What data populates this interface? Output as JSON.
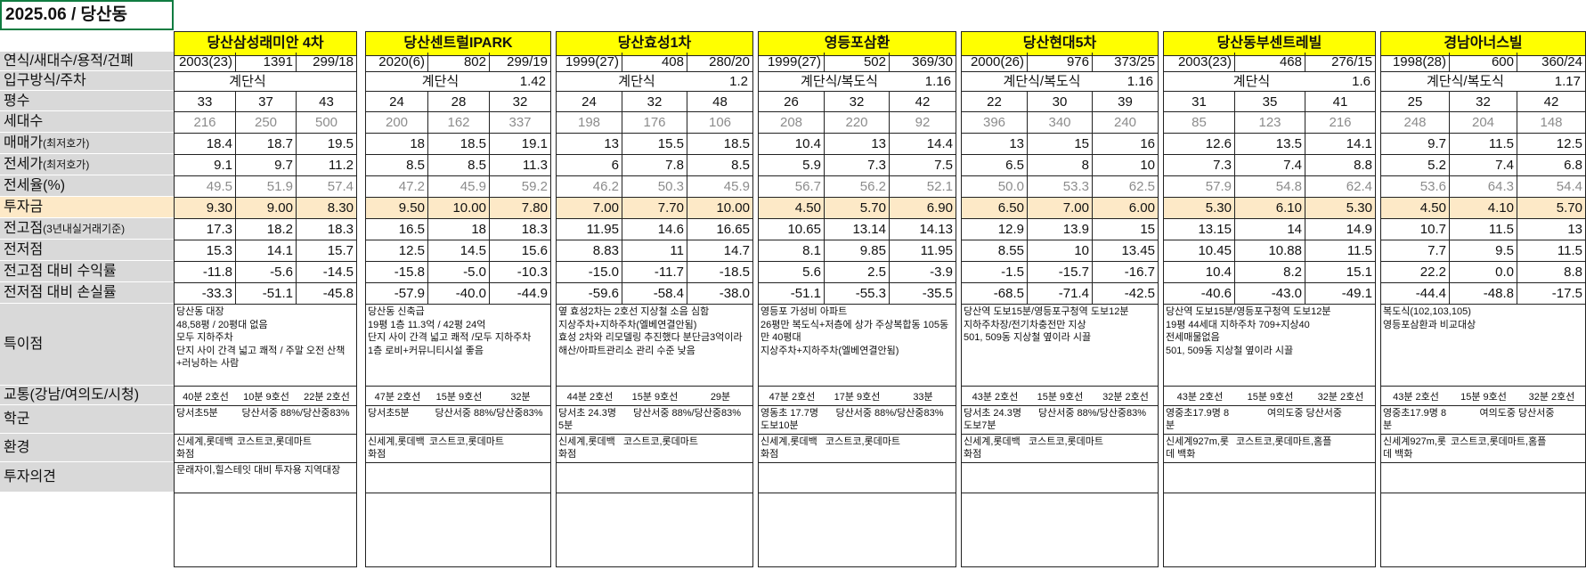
{
  "title": "2025.06 / 당산동",
  "labels": {
    "specs": "연식/새대수/용적/건폐",
    "entry": "입구방식/주차",
    "pyeong": "평수",
    "units": "세대수",
    "sale_main": "매매가",
    "sale_sub": "(최저호가)",
    "jeonse_main": "전세가",
    "jeonse_sub": "(최저호가)",
    "ratio": "전세율(%)",
    "invest": "투자금",
    "high_main": "전고점",
    "high_sub": "(3년내실거래기준)",
    "low": "전저점",
    "high_ret": "전고점 대비 수익률",
    "low_loss": "전저점 대비 손실률",
    "notes": "특이점",
    "transit": "교통(강남/여의도/시청)",
    "school": "학군",
    "env": "환경",
    "opinion": "투자의견"
  },
  "complexes": [
    {
      "name": "당산삼성래미안 4차",
      "specs": [
        "2003(23)",
        "1391",
        "299/18"
      ],
      "entry": "계단식",
      "parking": "",
      "pyeong": [
        "33",
        "37",
        "43"
      ],
      "units": [
        "216",
        "250",
        "500"
      ],
      "sale": [
        "18.4",
        "18.7",
        "19.5"
      ],
      "jeonse": [
        "9.1",
        "9.7",
        "11.2"
      ],
      "ratio": [
        "49.5",
        "51.9",
        "57.4"
      ],
      "invest": [
        "9.30",
        "9.00",
        "8.30"
      ],
      "high": [
        "17.3",
        "18.2",
        "18.3"
      ],
      "low": [
        "15.3",
        "14.1",
        "15.7"
      ],
      "high_ret": [
        "-11.8",
        "-5.6",
        "-14.5"
      ],
      "low_loss": [
        "-33.3",
        "-51.1",
        "-45.8"
      ],
      "notes": "당산동 대장\n48,58평 / 20평대 없음\n모두 지하주차\n단지 사이 간격 넓고 쾌적 / 주말 오전 산책+러닝하는 사람",
      "transit": [
        "40분 2호선",
        "10분 9호선",
        "22분 2호선"
      ],
      "school": [
        "당서초5분",
        "당산서중 88%/당산중83%"
      ],
      "env": [
        "신세계,롯데백화점",
        "코스트코,롯데마트"
      ],
      "opinion": "문래자이,힐스테잇 대비 투자용 지역대장"
    },
    {
      "name": "당산센트럴IPARK",
      "specs": [
        "2020(6)",
        "802",
        "299/19"
      ],
      "entry": "계단식",
      "parking": "1.42",
      "pyeong": [
        "24",
        "28",
        "32"
      ],
      "units": [
        "200",
        "162",
        "337"
      ],
      "sale": [
        "18",
        "18.5",
        "19.1"
      ],
      "jeonse": [
        "8.5",
        "8.5",
        "11.3"
      ],
      "ratio": [
        "47.2",
        "45.9",
        "59.2"
      ],
      "invest": [
        "9.50",
        "10.00",
        "7.80"
      ],
      "high": [
        "16.5",
        "18",
        "18.3"
      ],
      "low": [
        "12.5",
        "14.5",
        "15.6"
      ],
      "high_ret": [
        "-15.8",
        "-5.0",
        "-10.3"
      ],
      "low_loss": [
        "-57.9",
        "-40.0",
        "-44.9"
      ],
      "notes": "당산동 신축급\n19평 1층 11.3억 / 42평 24억\n단지 사이 간격 넓고 쾌적 /모두 지하주차\n1층 로비+커뮤니티시설 좋음",
      "transit": [
        "47분 2호선",
        "15분 9호선",
        "32분"
      ],
      "school": [
        "당서초5분",
        "당산서중 88%/당산중83%"
      ],
      "env": [
        "신세계,롯데백화점",
        "코스트코,롯데마트"
      ],
      "opinion": ""
    },
    {
      "name": "당산효성1차",
      "specs": [
        "1999(27)",
        "408",
        "280/20"
      ],
      "entry": "계단식",
      "parking": "1.2",
      "pyeong": [
        "24",
        "32",
        "48"
      ],
      "units": [
        "198",
        "176",
        "106"
      ],
      "sale": [
        "13",
        "15.5",
        "18.5"
      ],
      "jeonse": [
        "6",
        "7.8",
        "8.5"
      ],
      "ratio": [
        "46.2",
        "50.3",
        "45.9"
      ],
      "invest": [
        "7.00",
        "7.70",
        "10.00"
      ],
      "high": [
        "11.95",
        "14.6",
        "16.65"
      ],
      "low": [
        "8.83",
        "11",
        "14.7"
      ],
      "high_ret": [
        "-15.0",
        "-11.7",
        "-18.5"
      ],
      "low_loss": [
        "-59.6",
        "-58.4",
        "-38.0"
      ],
      "notes": "옆 효성2차는 2호선 지상철 소음 심함\n지상주차+지하주차(엘베연결안됨)\n효성 2차와 리모델링 추진했다 분단금3억이라 해산/아파트관리소 관리 수준 낮음",
      "transit": [
        "44분 2호선",
        "15분 9호선",
        "29분"
      ],
      "school": [
        "당서초 24.3명 5분",
        "당산서중 88%/당산중83%"
      ],
      "env": [
        "신세계,롯데백화점",
        "코스트코,롯데마트"
      ],
      "opinion": ""
    },
    {
      "name": "영등포삼환",
      "specs": [
        "1999(27)",
        "502",
        "369/30"
      ],
      "entry": "계단식/복도식",
      "parking": "1.16",
      "pyeong": [
        "26",
        "32",
        "42"
      ],
      "units": [
        "208",
        "220",
        "92"
      ],
      "sale": [
        "10.4",
        "13",
        "14.4"
      ],
      "jeonse": [
        "5.9",
        "7.3",
        "7.5"
      ],
      "ratio": [
        "56.7",
        "56.2",
        "52.1"
      ],
      "invest": [
        "4.50",
        "5.70",
        "6.90"
      ],
      "high": [
        "10.65",
        "13.14",
        "14.13"
      ],
      "low": [
        "8.1",
        "9.85",
        "11.95"
      ],
      "high_ret": [
        "5.6",
        "2.5",
        "-3.9"
      ],
      "low_loss": [
        "-51.1",
        "-55.3",
        "-35.5"
      ],
      "notes": "영등포 가성비 아파트\n26평만 복도식+저층에 상가 주상복합동 105동만 40평대\n지상주차+지하주차(엘베연결안됨)",
      "transit": [
        "47분 2호선",
        "17분 9호선",
        "33분"
      ],
      "school": [
        "영동초 17.7명 도보10분",
        "당산서중 88%/당산중83%"
      ],
      "env": [
        "신세계,롯데백화점",
        "코스트코,롯데마트"
      ],
      "opinion": ""
    },
    {
      "name": "당산현대5차",
      "specs": [
        "2000(26)",
        "976",
        "373/25"
      ],
      "entry": "계단식/복도식",
      "parking": "1.16",
      "pyeong": [
        "22",
        "30",
        "39"
      ],
      "units": [
        "396",
        "340",
        "240"
      ],
      "sale": [
        "13",
        "15",
        "16"
      ],
      "jeonse": [
        "6.5",
        "8",
        "10"
      ],
      "ratio": [
        "50.0",
        "53.3",
        "62.5"
      ],
      "invest": [
        "6.50",
        "7.00",
        "6.00"
      ],
      "high": [
        "12.9",
        "13.9",
        "15"
      ],
      "low": [
        "8.55",
        "10",
        "13.45"
      ],
      "high_ret": [
        "-1.5",
        "-15.7",
        "-16.7"
      ],
      "low_loss": [
        "-68.5",
        "-71.4",
        "-42.5"
      ],
      "notes": "당산역 도보15분/영등포구청역 도보12분\n지하주차장/전기차충전만 지상\n501, 509동 지상철 옆이라 시끌",
      "transit": [
        "43분 2호선",
        "15분 9호선",
        "32분 2호선"
      ],
      "school": [
        "당서초 24.3명 도보7분",
        "당산서중 88%/당산중83%"
      ],
      "env": [
        "신세계,롯데백화점",
        "코스트코,롯데마트"
      ],
      "opinion": ""
    },
    {
      "name": "당산동부센트레빌",
      "specs": [
        "2003(23)",
        "468",
        "276/15"
      ],
      "entry": "계단식",
      "parking": "1.6",
      "pyeong": [
        "31",
        "35",
        "41"
      ],
      "units": [
        "85",
        "123",
        "216"
      ],
      "sale": [
        "12.6",
        "13.5",
        "14.1"
      ],
      "jeonse": [
        "7.3",
        "7.4",
        "8.8"
      ],
      "ratio": [
        "57.9",
        "54.8",
        "62.4"
      ],
      "invest": [
        "5.30",
        "6.10",
        "5.30"
      ],
      "high": [
        "13.15",
        "14",
        "14.9"
      ],
      "low": [
        "10.45",
        "10.88",
        "11.5"
      ],
      "high_ret": [
        "10.4",
        "8.2",
        "15.1"
      ],
      "low_loss": [
        "-40.6",
        "-43.0",
        "-49.1"
      ],
      "notes": "당산역 도보15분/영등포구청역 도보12분\n19평 44세대 지하주차 709+지상40\n전세매물없음\n501, 509동 지상철 옆이라 시끌",
      "transit": [
        "43분 2호선",
        "15분 9호선",
        "32분 2호선"
      ],
      "school": [
        "영중초17.9명 8분",
        "여의도중 당산서중"
      ],
      "env": [
        "신세계927m,롯데 백화",
        "코스트코,롯데마트,홈플"
      ],
      "opinion": ""
    },
    {
      "name": "경남아너스빌",
      "specs": [
        "1998(28)",
        "600",
        "360/24"
      ],
      "entry": "계단식/복도식",
      "parking": "1.17",
      "pyeong": [
        "25",
        "32",
        "42"
      ],
      "units": [
        "248",
        "204",
        "148"
      ],
      "sale": [
        "9.7",
        "11.5",
        "12.5"
      ],
      "jeonse": [
        "5.2",
        "7.4",
        "6.8"
      ],
      "ratio": [
        "53.6",
        "64.3",
        "54.4"
      ],
      "invest": [
        "4.50",
        "4.10",
        "5.70"
      ],
      "high": [
        "10.7",
        "11.5",
        "13"
      ],
      "low": [
        "7.7",
        "9.5",
        "11.5"
      ],
      "high_ret": [
        "22.2",
        "0.0",
        "8.8"
      ],
      "low_loss": [
        "-44.4",
        "-48.8",
        "-17.5"
      ],
      "notes": "복도식(102,103,105)\n영등포삼환과 비교대상",
      "transit": [
        "43분 2호선",
        "15분 9호선",
        "32분 2호선"
      ],
      "school": [
        "영중초17.9명 8분",
        "여의도중 당산서중"
      ],
      "env": [
        "신세계927m,롯데 백화",
        "코스트코,롯데마트,홈플"
      ],
      "opinion": ""
    }
  ]
}
